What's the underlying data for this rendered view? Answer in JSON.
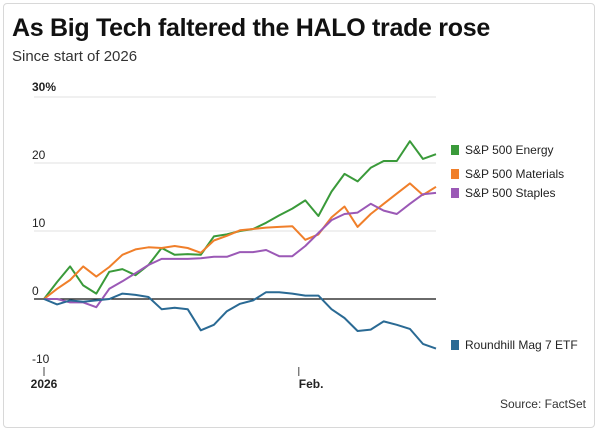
{
  "chart_data": {
    "type": "line",
    "title": "As Big Tech faltered the HALO trade rose",
    "subtitle": "Since start of 2026",
    "source": "Source: FactSet",
    "ylim": [
      -10,
      30
    ],
    "yticks": [
      {
        "v": 30,
        "label": "30%"
      },
      {
        "v": 20,
        "label": "20"
      },
      {
        "v": 10,
        "label": "10"
      },
      {
        "v": 0,
        "label": "0"
      },
      {
        "v": -10,
        "label": "-10"
      }
    ],
    "xticks": [
      {
        "i": 1,
        "label": "2026"
      },
      {
        "i": 20.5,
        "label": "Feb."
      }
    ],
    "grid": true,
    "legend_placement": "right",
    "series": [
      {
        "name": "S&P 500 Energy",
        "color": "#3a9a3a",
        "values": [
          0,
          2.5,
          4.8,
          2,
          0.8,
          4,
          4.4,
          3.5,
          5,
          7.5,
          6.5,
          6.6,
          6.5,
          9.2,
          9.5,
          10,
          10.3,
          11.2,
          12.3,
          13.3,
          14.5,
          12.2,
          15.8,
          18.4,
          17.3,
          19.3,
          20.3,
          20.3,
          23.2,
          20.6,
          21.3
        ]
      },
      {
        "name": "S&P 500 Materials",
        "color": "#f07f2a",
        "values": [
          0,
          1.5,
          2.8,
          4.8,
          3.3,
          4.7,
          6.5,
          7.3,
          7.6,
          7.5,
          7.8,
          7.5,
          6.8,
          8.6,
          9.3,
          10.1,
          10.3,
          10.5,
          10.6,
          10.7,
          8.7,
          9.5,
          12,
          13.6,
          10.6,
          12.5,
          14,
          15.5,
          17,
          15.3,
          16.5
        ]
      },
      {
        "name": "S&P 500 Staples",
        "color": "#9b59b6",
        "values": [
          0,
          0,
          -0.5,
          -0.5,
          -1.2,
          1.5,
          2.6,
          3.8,
          5,
          5.9,
          5.9,
          5.9,
          6,
          6.2,
          6.2,
          6.9,
          6.9,
          7.2,
          6.3,
          6.3,
          7.8,
          9.7,
          11.6,
          12.5,
          12.7,
          14,
          13,
          12.5,
          14,
          15.4,
          15.6
        ]
      },
      {
        "name": "Roundhill Mag 7 ETF",
        "color": "#2a6a94",
        "values": [
          0,
          -0.8,
          -0.2,
          -0.4,
          -0.2,
          0,
          0.8,
          0.6,
          0.3,
          -1.5,
          -1.3,
          -1.5,
          -4.6,
          -3.8,
          -1.8,
          -0.7,
          -0.2,
          1,
          1,
          0.8,
          0.5,
          0.5,
          -1.5,
          -2.8,
          -4.7,
          -4.5,
          -3.3,
          -3.8,
          -4.4,
          -6.6,
          -7.3
        ]
      }
    ]
  }
}
